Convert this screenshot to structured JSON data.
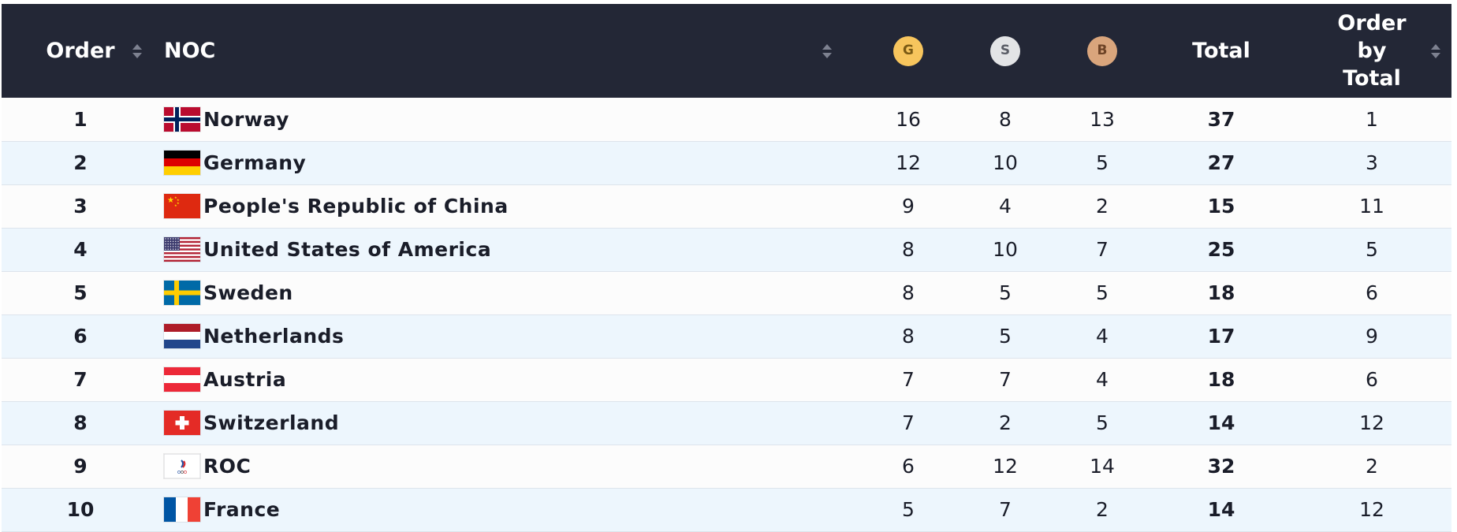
{
  "table": {
    "headers": {
      "order": "Order",
      "noc": "NOC",
      "gold": "G",
      "silver": "S",
      "bronze": "B",
      "total": "Total",
      "order_by_total_line1": "Order",
      "order_by_total_line2": "by",
      "order_by_total_line3": "Total"
    },
    "colors": {
      "header_bg": "#232736",
      "gold": "#f7c55d",
      "silver": "#e3e4e6",
      "bronze": "#d9a57c",
      "row_even": "#fcfcfc",
      "row_odd": "#edf6fd"
    },
    "rows": [
      {
        "order": "1",
        "noc": "Norway",
        "flag": "norway-flag-icon",
        "gold": "16",
        "silver": "8",
        "bronze": "13",
        "total": "37",
        "order_by_total": "1"
      },
      {
        "order": "2",
        "noc": "Germany",
        "flag": "germany-flag-icon",
        "gold": "12",
        "silver": "10",
        "bronze": "5",
        "total": "27",
        "order_by_total": "3"
      },
      {
        "order": "3",
        "noc": "People's Republic of China",
        "flag": "china-flag-icon",
        "gold": "9",
        "silver": "4",
        "bronze": "2",
        "total": "15",
        "order_by_total": "11"
      },
      {
        "order": "4",
        "noc": "United States of America",
        "flag": "usa-flag-icon",
        "gold": "8",
        "silver": "10",
        "bronze": "7",
        "total": "25",
        "order_by_total": "5"
      },
      {
        "order": "5",
        "noc": "Sweden",
        "flag": "sweden-flag-icon",
        "gold": "8",
        "silver": "5",
        "bronze": "5",
        "total": "18",
        "order_by_total": "6"
      },
      {
        "order": "6",
        "noc": "Netherlands",
        "flag": "netherlands-flag-icon",
        "gold": "8",
        "silver": "5",
        "bronze": "4",
        "total": "17",
        "order_by_total": "9"
      },
      {
        "order": "7",
        "noc": "Austria",
        "flag": "austria-flag-icon",
        "gold": "7",
        "silver": "7",
        "bronze": "4",
        "total": "18",
        "order_by_total": "6"
      },
      {
        "order": "8",
        "noc": "Switzerland",
        "flag": "switzerland-flag-icon",
        "gold": "7",
        "silver": "2",
        "bronze": "5",
        "total": "14",
        "order_by_total": "12"
      },
      {
        "order": "9",
        "noc": "ROC",
        "flag": "roc-flag-icon",
        "gold": "6",
        "silver": "12",
        "bronze": "14",
        "total": "32",
        "order_by_total": "2"
      },
      {
        "order": "10",
        "noc": "France",
        "flag": "france-flag-icon",
        "gold": "5",
        "silver": "7",
        "bronze": "2",
        "total": "14",
        "order_by_total": "12"
      }
    ]
  }
}
